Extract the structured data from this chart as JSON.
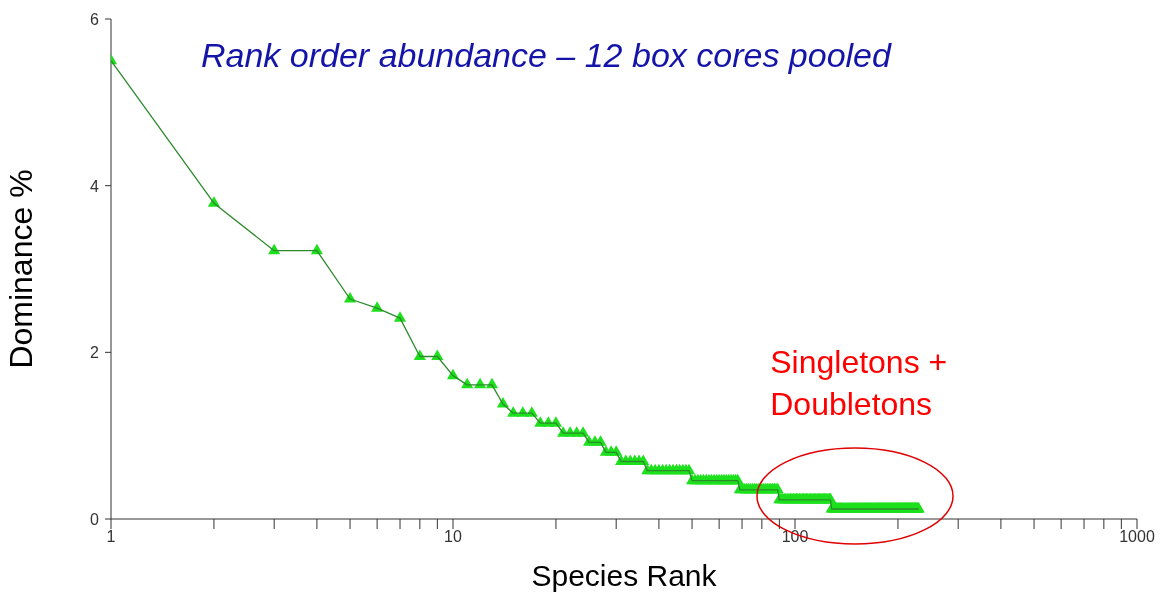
{
  "chart_data": {
    "type": "line",
    "title": "Rank order abundance – 12 box cores pooled",
    "xlabel": "Species Rank",
    "ylabel": "Dominance %",
    "log": "x",
    "marker": "triangle",
    "line_style": "solid",
    "grid": false,
    "legend": false,
    "xlim": [
      1,
      1000
    ],
    "ylim": [
      0,
      6
    ],
    "xticks": [
      1,
      {
        "value": 2,
        "label": null
      },
      {
        "value": 3,
        "label": null
      },
      {
        "value": 4,
        "label": null
      },
      {
        "value": 5,
        "label": null
      },
      {
        "value": 6,
        "label": null
      },
      {
        "value": 7,
        "label": null
      },
      {
        "value": 8,
        "label": null
      },
      {
        "value": 9,
        "label": null
      },
      10,
      {
        "value": 20,
        "label": null
      },
      {
        "value": 30,
        "label": null
      },
      {
        "value": 40,
        "label": null
      },
      {
        "value": 50,
        "label": null
      },
      {
        "value": 60,
        "label": null
      },
      {
        "value": 70,
        "label": null
      },
      {
        "value": 80,
        "label": null
      },
      {
        "value": 90,
        "label": null
      },
      100,
      {
        "value": 200,
        "label": null
      },
      {
        "value": 300,
        "label": null
      },
      {
        "value": 400,
        "label": null
      },
      {
        "value": 500,
        "label": null
      },
      {
        "value": 600,
        "label": null
      },
      {
        "value": 700,
        "label": null
      },
      {
        "value": 800,
        "label": null
      },
      {
        "value": 900,
        "label": null
      },
      1000
    ],
    "yticks": [
      0,
      2,
      4,
      6
    ],
    "annotations": [
      {
        "text": "Singletons + Doubletons",
        "x": 150,
        "y": 0.2
      }
    ],
    "series": [
      {
        "color": "#1de01d",
        "x": [
          1,
          2,
          3,
          4,
          5,
          6,
          7,
          8,
          9,
          10,
          11,
          12,
          13,
          14,
          15,
          16,
          17,
          18,
          19,
          20,
          21,
          22,
          23,
          24,
          25,
          26,
          27,
          28,
          29,
          30,
          31,
          32,
          33,
          34,
          35,
          36,
          37,
          38,
          39,
          40,
          41,
          42,
          43,
          44,
          45,
          46,
          47,
          48,
          49,
          50,
          51,
          52,
          53,
          54,
          55,
          56,
          57,
          58,
          59,
          60,
          61,
          62,
          63,
          64,
          65,
          66,
          67,
          68,
          69,
          70,
          71,
          72,
          73,
          74,
          75,
          76,
          77,
          78,
          79,
          80,
          81,
          82,
          83,
          84,
          85,
          86,
          87,
          88,
          89,
          90,
          91,
          92,
          93,
          94,
          95,
          96,
          97,
          98,
          99,
          100,
          101,
          102,
          103,
          104,
          105,
          106,
          107,
          108,
          109,
          110,
          111,
          112,
          113,
          114,
          115,
          116,
          117,
          118,
          119,
          120,
          121,
          122,
          123,
          124,
          125,
          126,
          127,
          128,
          129,
          130,
          131,
          132,
          133,
          134,
          135,
          136,
          137,
          138,
          139,
          140,
          141,
          142,
          143,
          144,
          145,
          146,
          147,
          148,
          149,
          150,
          151,
          152,
          153,
          154,
          155,
          156,
          157,
          158,
          159,
          160,
          161,
          162,
          163,
          164,
          165,
          166,
          167,
          168,
          169,
          170,
          171,
          172,
          173,
          174,
          175,
          176,
          177,
          178,
          179,
          180,
          181,
          182,
          183,
          184,
          185,
          186,
          187,
          188,
          189,
          190,
          191,
          192,
          193,
          194,
          195,
          196,
          197,
          198,
          199,
          200,
          201,
          202,
          203,
          204,
          205,
          206,
          207,
          208,
          209,
          210,
          211,
          212,
          213,
          214,
          215,
          216,
          217,
          218,
          219,
          220,
          221,
          222,
          223,
          224,
          225,
          226,
          227,
          228,
          229,
          230
        ],
        "values": [
          5.5,
          3.79,
          3.22,
          3.22,
          2.64,
          2.53,
          2.41,
          1.95,
          1.95,
          1.72,
          1.61,
          1.61,
          1.61,
          1.38,
          1.27,
          1.27,
          1.27,
          1.15,
          1.15,
          1.15,
          1.03,
          1.03,
          1.03,
          1.03,
          0.92,
          0.92,
          0.92,
          0.8,
          0.8,
          0.8,
          0.69,
          0.69,
          0.69,
          0.69,
          0.69,
          0.69,
          0.58,
          0.58,
          0.58,
          0.58,
          0.58,
          0.58,
          0.58,
          0.58,
          0.58,
          0.58,
          0.58,
          0.58,
          0.58,
          0.46,
          0.46,
          0.46,
          0.46,
          0.46,
          0.46,
          0.46,
          0.46,
          0.46,
          0.46,
          0.46,
          0.46,
          0.46,
          0.46,
          0.46,
          0.46,
          0.46,
          0.46,
          0.46,
          0.35,
          0.35,
          0.35,
          0.35,
          0.35,
          0.35,
          0.35,
          0.35,
          0.35,
          0.35,
          0.35,
          0.35,
          0.35,
          0.35,
          0.35,
          0.35,
          0.35,
          0.35,
          0.35,
          0.35,
          0.35,
          0.23,
          0.23,
          0.23,
          0.23,
          0.23,
          0.23,
          0.23,
          0.23,
          0.23,
          0.23,
          0.23,
          0.23,
          0.23,
          0.23,
          0.23,
          0.23,
          0.23,
          0.23,
          0.23,
          0.23,
          0.23,
          0.23,
          0.23,
          0.23,
          0.23,
          0.23,
          0.23,
          0.23,
          0.23,
          0.23,
          0.23,
          0.23,
          0.23,
          0.23,
          0.23,
          0.23,
          0.23,
          0.23,
          0.12,
          0.12,
          0.12,
          0.12,
          0.12,
          0.12,
          0.12,
          0.12,
          0.12,
          0.12,
          0.12,
          0.12,
          0.12,
          0.12,
          0.12,
          0.12,
          0.12,
          0.12,
          0.12,
          0.12,
          0.12,
          0.12,
          0.12,
          0.12,
          0.12,
          0.12,
          0.12,
          0.12,
          0.12,
          0.12,
          0.12,
          0.12,
          0.12,
          0.12,
          0.12,
          0.12,
          0.12,
          0.12,
          0.12,
          0.12,
          0.12,
          0.12,
          0.12,
          0.12,
          0.12,
          0.12,
          0.12,
          0.12,
          0.12,
          0.12,
          0.12,
          0.12,
          0.12,
          0.12,
          0.12,
          0.12,
          0.12,
          0.12,
          0.12,
          0.12,
          0.12,
          0.12,
          0.12,
          0.12,
          0.12,
          0.12,
          0.12,
          0.12,
          0.12,
          0.12,
          0.12,
          0.12,
          0.12,
          0.12,
          0.12,
          0.12,
          0.12,
          0.12,
          0.12,
          0.12,
          0.12,
          0.12,
          0.12,
          0.12,
          0.12,
          0.12,
          0.12,
          0.12,
          0.12,
          0.12,
          0.12,
          0.12,
          0.12,
          0.12,
          0.12,
          0.12,
          0.12,
          0.12,
          0.12,
          0.12,
          0.12,
          0.12,
          0.12
        ]
      }
    ]
  }
}
